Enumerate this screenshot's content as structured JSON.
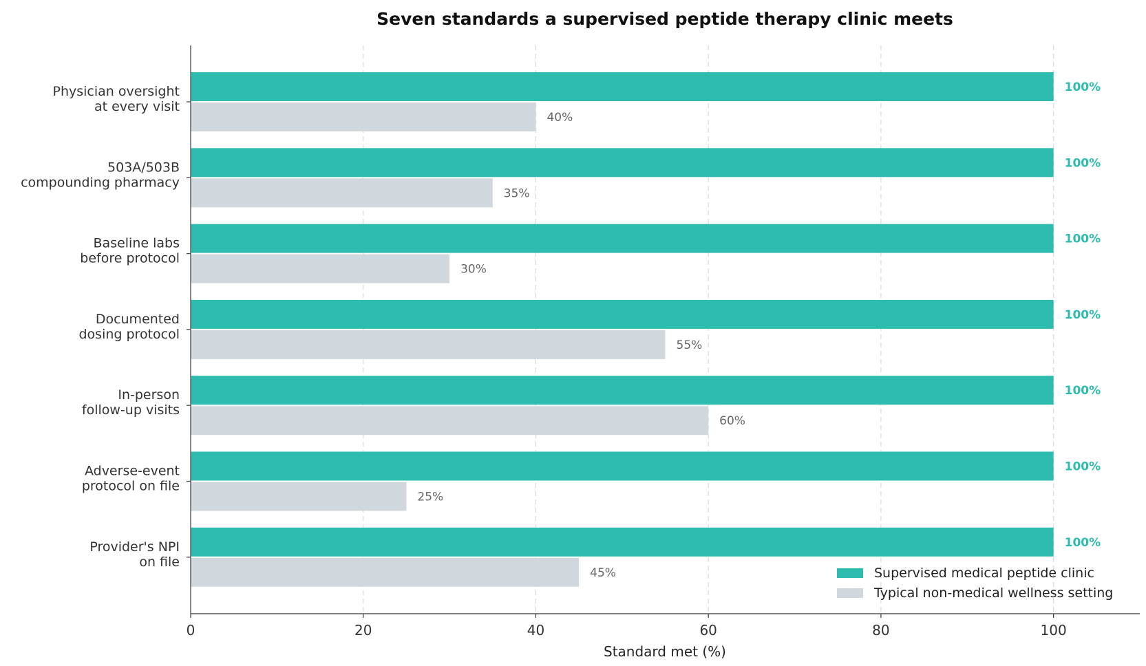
{
  "chart_data": {
    "type": "bar",
    "orientation": "horizontal",
    "title": "Seven standards a supervised peptide therapy clinic meets",
    "xlabel": "Standard met (%)",
    "ylabel": "",
    "xlim": [
      0,
      110
    ],
    "xticks": [
      0,
      20,
      40,
      60,
      80,
      100
    ],
    "grid": "x-dashed",
    "legend_position": "bottom-right",
    "categories": [
      [
        "Physician oversight",
        "at every visit"
      ],
      [
        "503A/503B",
        "compounding pharmacy"
      ],
      [
        "Baseline labs",
        "before protocol"
      ],
      [
        "Documented",
        "dosing protocol"
      ],
      [
        "In-person",
        "follow-up visits"
      ],
      [
        "Adverse-event",
        "protocol on file"
      ],
      [
        "Provider's NPI",
        "on file"
      ]
    ],
    "series": [
      {
        "name": "Supervised medical peptide clinic",
        "color": "#2dbcae",
        "values": [
          100,
          100,
          100,
          100,
          100,
          100,
          100
        ],
        "labels": [
          "100%",
          "100%",
          "100%",
          "100%",
          "100%",
          "100%",
          "100%"
        ]
      },
      {
        "name": "Typical non-medical wellness setting",
        "color": "#d0d7dd",
        "values": [
          40,
          35,
          30,
          55,
          60,
          25,
          45
        ],
        "labels": [
          "40%",
          "35%",
          "30%",
          "55%",
          "60%",
          "25%",
          "45%"
        ]
      }
    ]
  }
}
